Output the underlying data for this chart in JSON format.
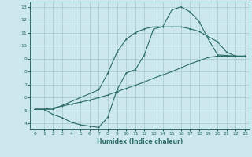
{
  "bg_color": "#cce8ec",
  "grid_color": "#aacdd4",
  "line_color": "#2a6b65",
  "xlabel": "Humidex (Indice chaleur)",
  "xlim": [
    -0.5,
    23.5
  ],
  "ylim": [
    3.6,
    13.4
  ],
  "xticks": [
    0,
    1,
    2,
    3,
    4,
    5,
    6,
    7,
    8,
    9,
    10,
    11,
    12,
    13,
    14,
    15,
    16,
    17,
    18,
    19,
    20,
    21,
    22,
    23
  ],
  "yticks": [
    4,
    5,
    6,
    7,
    8,
    9,
    10,
    11,
    12,
    13
  ],
  "curve1_x": [
    0,
    1,
    2,
    3,
    4,
    5,
    6,
    7,
    8,
    9,
    10,
    11,
    12,
    13,
    14,
    15,
    16,
    17,
    18,
    19,
    20,
    21,
    22,
    23
  ],
  "curve1_y": [
    5.1,
    5.1,
    4.7,
    4.45,
    4.1,
    3.9,
    3.8,
    3.7,
    4.5,
    6.6,
    7.9,
    8.15,
    9.3,
    11.3,
    11.45,
    12.75,
    13.0,
    12.6,
    11.85,
    10.5,
    9.3,
    9.25,
    9.2,
    9.2
  ],
  "curve2_x": [
    0,
    1,
    2,
    7,
    8,
    9,
    10,
    11,
    12,
    13,
    14,
    15,
    16,
    17,
    18,
    19,
    20,
    21,
    22,
    23
  ],
  "curve2_y": [
    5.1,
    5.1,
    5.1,
    6.6,
    7.9,
    9.5,
    10.5,
    11.0,
    11.3,
    11.45,
    11.45,
    11.45,
    11.45,
    11.3,
    11.1,
    10.7,
    10.3,
    9.5,
    9.2,
    9.2
  ],
  "curve3_x": [
    0,
    1,
    2,
    3,
    4,
    5,
    6,
    7,
    8,
    9,
    10,
    11,
    12,
    13,
    14,
    15,
    16,
    17,
    18,
    19,
    20,
    21,
    22,
    23
  ],
  "curve3_y": [
    5.1,
    5.1,
    5.2,
    5.35,
    5.5,
    5.65,
    5.8,
    6.0,
    6.2,
    6.45,
    6.7,
    6.95,
    7.2,
    7.5,
    7.75,
    8.0,
    8.3,
    8.6,
    8.85,
    9.1,
    9.2,
    9.2,
    9.2,
    9.2
  ]
}
